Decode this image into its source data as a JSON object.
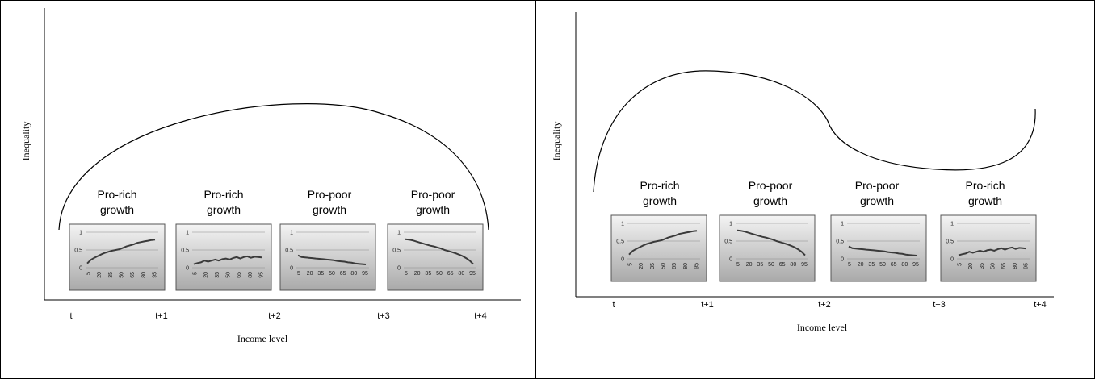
{
  "panels": [
    {
      "ylabel": "Inequality",
      "xlabel": "Income level",
      "time_ticks": [
        "t",
        "t+1",
        "t+2",
        "t+3",
        "t+4"
      ],
      "phases": [
        {
          "label_line1": "Pro-rich",
          "label_line2": "growth",
          "type": "rich",
          "yticks": [
            "1",
            "0.5",
            "0"
          ],
          "xticks": [
            "5",
            "20",
            "35",
            "50",
            "65",
            "80",
            "95"
          ],
          "rotated": true,
          "values": [
            0.12,
            0.22,
            0.28,
            0.33,
            0.38,
            0.42,
            0.45,
            0.48,
            0.5,
            0.52,
            0.56,
            0.6,
            0.63,
            0.66,
            0.7,
            0.72,
            0.74,
            0.76,
            0.78,
            0.79
          ]
        },
        {
          "label_line1": "Pro-rich",
          "label_line2": "growth",
          "type": "flat-rich",
          "yticks": [
            "1",
            "0.5",
            "0"
          ],
          "xticks": [
            "5",
            "20",
            "35",
            "50",
            "65",
            "80",
            "95"
          ],
          "rotated": true,
          "values": [
            0.1,
            0.13,
            0.15,
            0.2,
            0.17,
            0.2,
            0.23,
            0.2,
            0.24,
            0.26,
            0.23,
            0.27,
            0.3,
            0.26,
            0.3,
            0.32,
            0.28,
            0.31,
            0.3,
            0.29
          ]
        },
        {
          "label_line1": "Pro-poor",
          "label_line2": "growth",
          "type": "flat-poor",
          "yticks": [
            "1",
            "0.5",
            "0"
          ],
          "xticks": [
            "5",
            "20",
            "35",
            "50",
            "65",
            "80",
            "95"
          ],
          "rotated": false,
          "values": [
            0.35,
            0.3,
            0.29,
            0.28,
            0.27,
            0.26,
            0.25,
            0.24,
            0.23,
            0.22,
            0.21,
            0.19,
            0.18,
            0.17,
            0.15,
            0.14,
            0.12,
            0.11,
            0.1,
            0.09
          ]
        },
        {
          "label_line1": "Pro-poor",
          "label_line2": "growth",
          "type": "poor",
          "yticks": [
            "1",
            "0.5",
            "0"
          ],
          "xticks": [
            "5",
            "20",
            "35",
            "50",
            "65",
            "80",
            "95"
          ],
          "rotated": false,
          "values": [
            0.8,
            0.79,
            0.77,
            0.74,
            0.71,
            0.68,
            0.65,
            0.62,
            0.6,
            0.57,
            0.54,
            0.5,
            0.47,
            0.44,
            0.41,
            0.37,
            0.33,
            0.27,
            0.2,
            0.1
          ]
        }
      ]
    },
    {
      "ylabel": "Inequality",
      "xlabel": "Income level",
      "time_ticks": [
        "t",
        "t+1",
        "t+2",
        "t+3",
        "t+4"
      ],
      "phases": [
        {
          "label_line1": "Pro-rich",
          "label_line2": "growth",
          "type": "rich",
          "yticks": [
            "1",
            "0.5",
            "0"
          ],
          "xticks": [
            "5",
            "20",
            "35",
            "50",
            "65",
            "80",
            "95"
          ],
          "rotated": true,
          "values": [
            0.12,
            0.22,
            0.28,
            0.33,
            0.38,
            0.42,
            0.45,
            0.48,
            0.5,
            0.52,
            0.56,
            0.6,
            0.63,
            0.66,
            0.7,
            0.72,
            0.74,
            0.76,
            0.78,
            0.79
          ]
        },
        {
          "label_line1": "Pro-poor",
          "label_line2": "growth",
          "type": "poor",
          "yticks": [
            "1",
            "0.5",
            "0"
          ],
          "xticks": [
            "5",
            "20",
            "35",
            "50",
            "65",
            "80",
            "95"
          ],
          "rotated": false,
          "values": [
            0.8,
            0.79,
            0.77,
            0.74,
            0.71,
            0.68,
            0.65,
            0.62,
            0.6,
            0.57,
            0.54,
            0.5,
            0.47,
            0.44,
            0.41,
            0.37,
            0.33,
            0.27,
            0.2,
            0.1
          ]
        },
        {
          "label_line1": "Pro-poor",
          "label_line2": "growth",
          "type": "flat-poor",
          "yticks": [
            "1",
            "0.5",
            "0"
          ],
          "xticks": [
            "5",
            "20",
            "35",
            "50",
            "65",
            "80",
            "95"
          ],
          "rotated": false,
          "values": [
            0.35,
            0.3,
            0.29,
            0.28,
            0.27,
            0.26,
            0.25,
            0.24,
            0.23,
            0.22,
            0.21,
            0.19,
            0.18,
            0.17,
            0.15,
            0.14,
            0.12,
            0.11,
            0.1,
            0.09
          ]
        },
        {
          "label_line1": "Pro-rich",
          "label_line2": "growth",
          "type": "flat-rich",
          "yticks": [
            "1",
            "0.5",
            "0"
          ],
          "xticks": [
            "5",
            "20",
            "35",
            "50",
            "65",
            "80",
            "95"
          ],
          "rotated": true,
          "values": [
            0.1,
            0.13,
            0.15,
            0.2,
            0.17,
            0.2,
            0.23,
            0.2,
            0.24,
            0.26,
            0.23,
            0.27,
            0.3,
            0.26,
            0.3,
            0.32,
            0.28,
            0.31,
            0.3,
            0.29
          ]
        }
      ]
    }
  ]
}
